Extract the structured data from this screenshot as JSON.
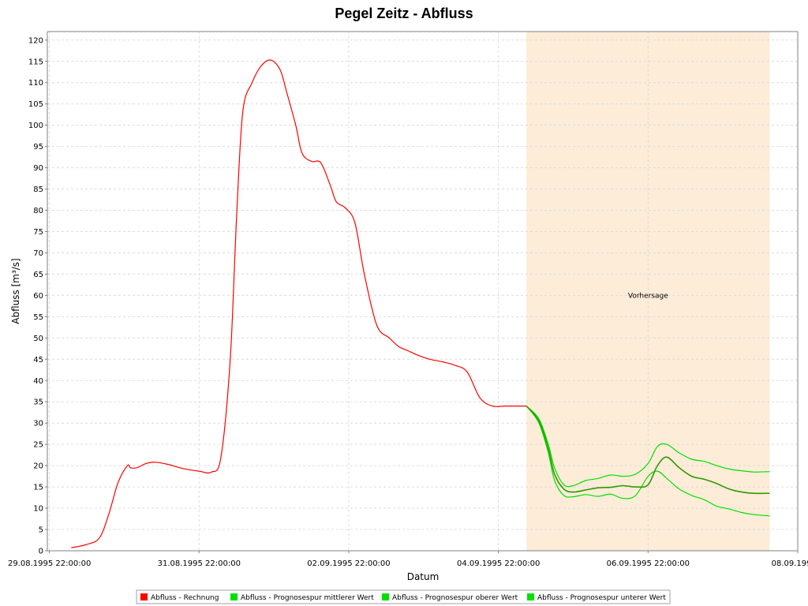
{
  "chart_data": {
    "type": "line",
    "title": "Pegel Zeitz - Abfluss",
    "xlabel": "Datum",
    "ylabel": "Abfluss [m³/s]",
    "ylim": [
      0,
      122
    ],
    "xlim": [
      "1995-08-29 21:20",
      "1995-09-08 22:00"
    ],
    "yticks": [
      0,
      5,
      10,
      15,
      20,
      25,
      30,
      35,
      40,
      45,
      50,
      55,
      60,
      65,
      70,
      75,
      80,
      85,
      90,
      95,
      100,
      105,
      110,
      115,
      120
    ],
    "xticks": [
      {
        "x": "1995-08-29 22:00",
        "label": "29.08.1995 22:00:00"
      },
      {
        "x": "1995-08-31 22:00",
        "label": "31.08.1995 22:00:00"
      },
      {
        "x": "1995-09-02 22:00",
        "label": "02.09.1995 22:00:00"
      },
      {
        "x": "1995-09-04 22:00",
        "label": "04.09.1995 22:00:00"
      },
      {
        "x": "1995-09-06 22:00",
        "label": "06.09.1995 22:00:00"
      },
      {
        "x": "1995-09-08 22:00",
        "label": "08.09.1995 2"
      }
    ],
    "grid": true,
    "legend_position": "bottom",
    "forecast_region": {
      "label": "Vorhersage",
      "x_start": "1995-09-05 07:00",
      "x_end": "1995-09-08 13:00",
      "color": "#fcecd8"
    },
    "series": [
      {
        "name": "Abfluss - Rechnung",
        "color": "#ff0000",
        "x": [
          "1995-08-30 05:00",
          "1995-08-30 10:00",
          "1995-08-30 14:00",
          "1995-08-30 17:00",
          "1995-08-30 20:00",
          "1995-08-30 23:00",
          "1995-08-31 00:00",
          "1995-08-31 02:00",
          "1995-08-31 05:00",
          "1995-08-31 08:00",
          "1995-08-31 12:00",
          "1995-08-31 17:00",
          "1995-08-31 22:00",
          "1995-09-01 02:00",
          "1995-09-01 05:00",
          "1995-09-01 08:00",
          "1995-09-01 10:00",
          "1995-09-01 12:00",
          "1995-09-01 15:00",
          "1995-09-01 18:00",
          "1995-09-01 21:00",
          "1995-09-02 00:00",
          "1995-09-02 02:00",
          "1995-09-02 05:00",
          "1995-09-02 07:00",
          "1995-09-02 10:00",
          "1995-09-02 13:00",
          "1995-09-02 16:00",
          "1995-09-02 18:00",
          "1995-09-02 21:00",
          "1995-09-03 00:00",
          "1995-09-03 03:00",
          "1995-09-03 07:00",
          "1995-09-03 11:00",
          "1995-09-03 14:00",
          "1995-09-03 17:00",
          "1995-09-03 20:00",
          "1995-09-04 00:00",
          "1995-09-04 04:00",
          "1995-09-04 08:00",
          "1995-09-04 12:00",
          "1995-09-04 16:00",
          "1995-09-04 20:00",
          "1995-09-05 00:00",
          "1995-09-05 03:00",
          "1995-09-05 07:00"
        ],
        "y": [
          0.7,
          1.5,
          3.0,
          8.5,
          16.0,
          20.0,
          19.5,
          19.5,
          20.5,
          20.8,
          20.3,
          19.3,
          18.7,
          18.5,
          22.0,
          45.0,
          78.0,
          103.0,
          110.0,
          114.0,
          115.3,
          113.0,
          108.0,
          100.0,
          93.5,
          91.5,
          91.2,
          86.0,
          82.0,
          80.5,
          77.0,
          65.0,
          53.0,
          50.0,
          48.0,
          47.0,
          46.0,
          45.0,
          44.4,
          43.6,
          42.0,
          36.0,
          34.0,
          34.0,
          34.0,
          34.0
        ]
      },
      {
        "name": "Abfluss - Prognosespur mittlerer Wert",
        "color": "#00e000",
        "x": [
          "1995-09-05 07:00",
          "1995-09-05 11:00",
          "1995-09-05 14:00",
          "1995-09-05 16:00",
          "1995-09-05 19:00",
          "1995-09-05 22:00",
          "1995-09-06 02:00",
          "1995-09-06 06:00",
          "1995-09-06 10:00",
          "1995-09-06 14:00",
          "1995-09-06 18:00",
          "1995-09-06 22:00",
          "1995-09-07 01:00",
          "1995-09-07 04:00",
          "1995-09-07 08:00",
          "1995-09-07 12:00",
          "1995-09-07 16:00",
          "1995-09-07 20:00",
          "1995-09-08 00:00",
          "1995-09-08 04:00",
          "1995-09-08 08:00",
          "1995-09-08 13:00"
        ],
        "y": [
          34.0,
          30.5,
          24.0,
          18.0,
          14.5,
          13.8,
          14.3,
          14.8,
          14.9,
          15.3,
          15.0,
          15.5,
          20.0,
          22.0,
          19.5,
          17.5,
          16.8,
          15.8,
          14.5,
          13.8,
          13.5,
          13.5
        ]
      },
      {
        "name": "Abfluss - Prognosespur oberer Wert",
        "color": "#00e000",
        "x": [
          "1995-09-05 07:00",
          "1995-09-05 11:00",
          "1995-09-05 14:00",
          "1995-09-05 16:00",
          "1995-09-05 19:00",
          "1995-09-05 22:00",
          "1995-09-06 02:00",
          "1995-09-06 06:00",
          "1995-09-06 10:00",
          "1995-09-06 14:00",
          "1995-09-06 18:00",
          "1995-09-06 22:00",
          "1995-09-07 01:00",
          "1995-09-07 04:00",
          "1995-09-07 08:00",
          "1995-09-07 12:00",
          "1995-09-07 16:00",
          "1995-09-07 20:00",
          "1995-09-08 00:00",
          "1995-09-08 04:00",
          "1995-09-08 08:00",
          "1995-09-08 13:00"
        ],
        "y": [
          34.0,
          31.0,
          25.0,
          19.5,
          15.5,
          15.3,
          16.5,
          17.0,
          17.8,
          17.5,
          18.0,
          20.5,
          24.5,
          25.0,
          23.0,
          21.5,
          21.0,
          20.0,
          19.2,
          18.8,
          18.5,
          18.6
        ]
      },
      {
        "name": "Abfluss - Prognosespur unterer Wert",
        "color": "#00e000",
        "x": [
          "1995-09-05 07:00",
          "1995-09-05 11:00",
          "1995-09-05 14:00",
          "1995-09-05 16:00",
          "1995-09-05 19:00",
          "1995-09-05 22:00",
          "1995-09-06 02:00",
          "1995-09-06 06:00",
          "1995-09-06 10:00",
          "1995-09-06 14:00",
          "1995-09-06 18:00",
          "1995-09-06 22:00",
          "1995-09-07 01:00",
          "1995-09-07 04:00",
          "1995-09-07 08:00",
          "1995-09-07 12:00",
          "1995-09-07 16:00",
          "1995-09-07 20:00",
          "1995-09-08 00:00",
          "1995-09-08 04:00",
          "1995-09-08 08:00",
          "1995-09-08 13:00"
        ],
        "y": [
          34.0,
          30.0,
          23.0,
          16.5,
          13.0,
          12.7,
          13.2,
          12.8,
          13.3,
          12.3,
          13.0,
          17.5,
          18.7,
          17.0,
          14.5,
          13.0,
          12.0,
          10.5,
          9.8,
          9.0,
          8.5,
          8.2
        ]
      }
    ]
  }
}
